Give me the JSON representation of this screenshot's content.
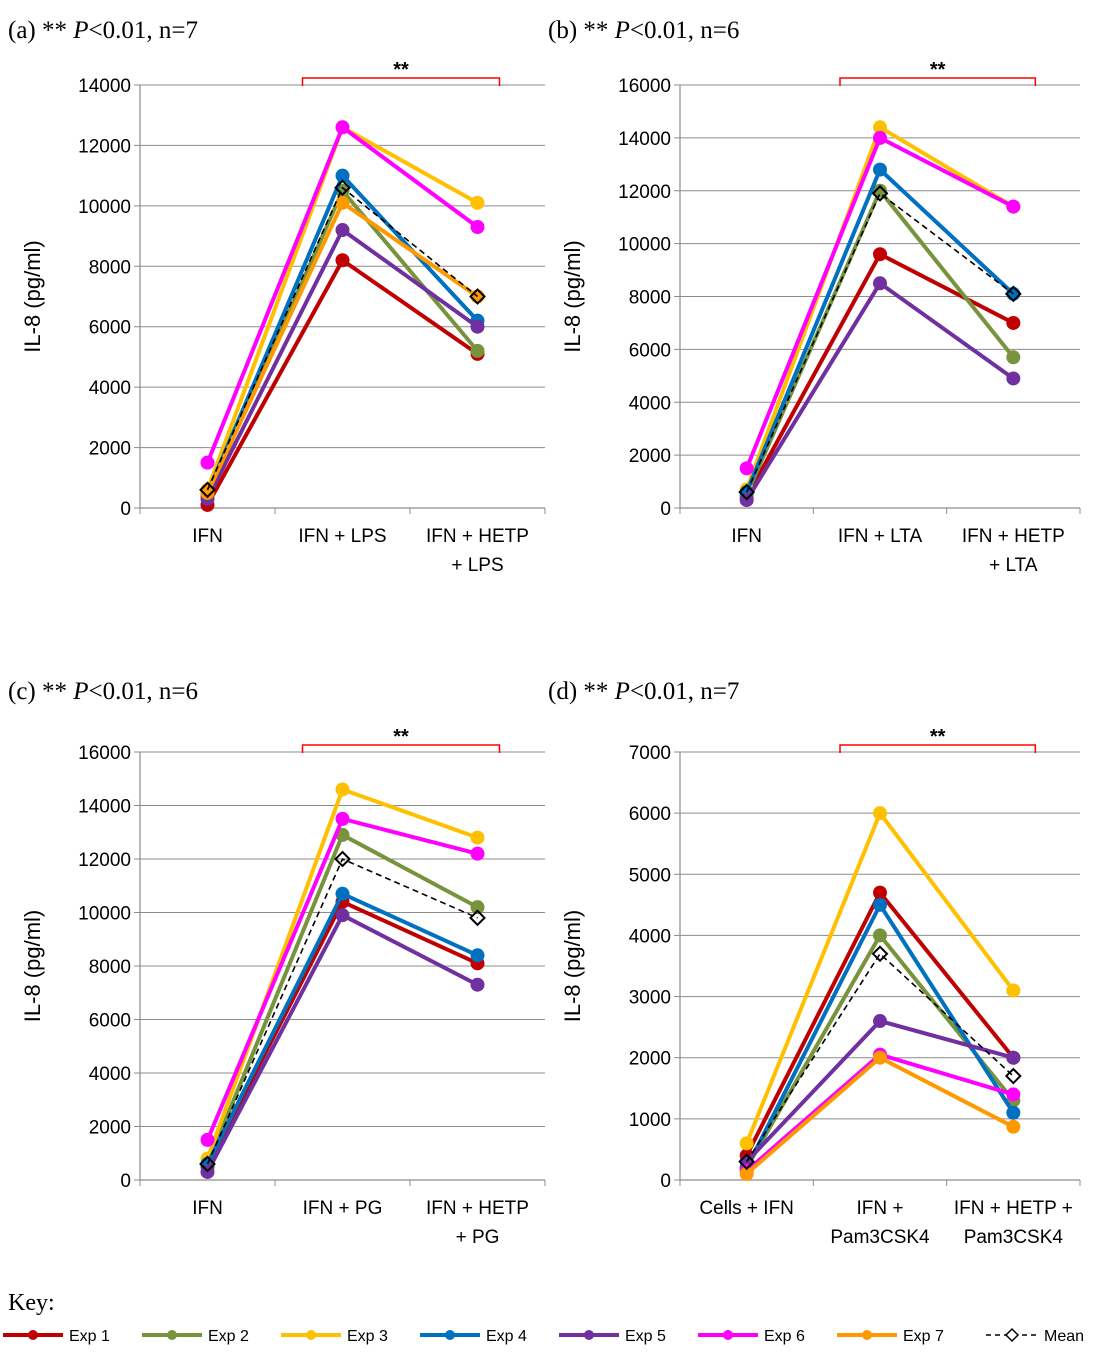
{
  "colors": {
    "Exp 1": "#c00000",
    "Exp 2": "#77933c",
    "Exp 3": "#ffc000",
    "Exp 4": "#0070c0",
    "Exp 5": "#7030a0",
    "Exp 6": "#ff00ff",
    "Exp 7": "#ff9900",
    "Mean": "#000000",
    "bracket": "#ff0000"
  },
  "key": {
    "title": "Key:",
    "items": [
      "Exp 1",
      "Exp 2",
      "Exp 3",
      "Exp 4",
      "Exp 5",
      "Exp 6",
      "Exp 7",
      "Mean"
    ]
  },
  "chart_data": [
    {
      "type": "line",
      "panel_label": "(a) ** ",
      "p_text": "P",
      "stat_text": "<0.01, n=7",
      "ylabel": "IL-8  (pg/ml)",
      "ylim": [
        0,
        14000
      ],
      "yticks": [
        0,
        2000,
        4000,
        6000,
        8000,
        10000,
        12000,
        14000
      ],
      "categories": [
        [
          "IFN"
        ],
        [
          "IFN + LPS"
        ],
        [
          "IFN + HETP",
          "+ LPS"
        ]
      ],
      "significance": "**",
      "series": [
        {
          "name": "Exp 1",
          "values": [
            100,
            8200,
            5100
          ]
        },
        {
          "name": "Exp 2",
          "values": [
            400,
            10500,
            5200
          ]
        },
        {
          "name": "Exp 3",
          "values": [
            600,
            12600,
            10100
          ]
        },
        {
          "name": "Exp 4",
          "values": [
            500,
            11000,
            6200
          ]
        },
        {
          "name": "Exp 5",
          "values": [
            300,
            9200,
            6000
          ]
        },
        {
          "name": "Exp 6",
          "values": [
            1500,
            12600,
            9300
          ]
        },
        {
          "name": "Exp 7",
          "values": [
            500,
            10100,
            7000
          ]
        },
        {
          "name": "Mean",
          "values": [
            600,
            10600,
            7000
          ]
        }
      ]
    },
    {
      "type": "line",
      "panel_label": "(b) ** ",
      "p_text": "P",
      "stat_text": "<0.01, n=6",
      "ylabel": "IL-8  (pg/ml)",
      "ylim": [
        0,
        16000
      ],
      "yticks": [
        0,
        2000,
        4000,
        6000,
        8000,
        10000,
        12000,
        14000,
        16000
      ],
      "categories": [
        [
          "IFN"
        ],
        [
          "IFN + LTA"
        ],
        [
          "IFN + HETP",
          "+ LTA"
        ]
      ],
      "significance": "**",
      "series": [
        {
          "name": "Exp 1",
          "values": [
            400,
            9600,
            7000
          ]
        },
        {
          "name": "Exp 2",
          "values": [
            500,
            12000,
            5700
          ]
        },
        {
          "name": "Exp 3",
          "values": [
            700,
            14400,
            11400
          ]
        },
        {
          "name": "Exp 4",
          "values": [
            600,
            12800,
            8100
          ]
        },
        {
          "name": "Exp 5",
          "values": [
            300,
            8500,
            4900
          ]
        },
        {
          "name": "Exp 6",
          "values": [
            1500,
            14000,
            11400
          ]
        },
        {
          "name": "Mean",
          "values": [
            600,
            11900,
            8100
          ]
        }
      ]
    },
    {
      "type": "line",
      "panel_label": "(c) ** ",
      "p_text": "P",
      "stat_text": "<0.01, n=6",
      "ylabel": "IL-8  (pg/ml)",
      "ylim": [
        0,
        16000
      ],
      "yticks": [
        0,
        2000,
        4000,
        6000,
        8000,
        10000,
        12000,
        14000,
        16000
      ],
      "categories": [
        [
          "IFN"
        ],
        [
          "IFN + PG"
        ],
        [
          "IFN + HETP",
          "+ PG"
        ]
      ],
      "significance": "**",
      "series": [
        {
          "name": "Exp 1",
          "values": [
            500,
            10400,
            8100
          ]
        },
        {
          "name": "Exp 2",
          "values": [
            600,
            12900,
            10200
          ]
        },
        {
          "name": "Exp 3",
          "values": [
            800,
            14600,
            12800
          ]
        },
        {
          "name": "Exp 4",
          "values": [
            600,
            10700,
            8400
          ]
        },
        {
          "name": "Exp 5",
          "values": [
            300,
            9900,
            7300
          ]
        },
        {
          "name": "Exp 6",
          "values": [
            1500,
            13500,
            12200
          ]
        },
        {
          "name": "Mean",
          "values": [
            600,
            12000,
            9800
          ]
        }
      ]
    },
    {
      "type": "line",
      "panel_label": "(d) ** ",
      "p_text": "P",
      "stat_text": "<0.01, n=7",
      "ylabel": "IL-8  (pg/ml)",
      "ylim": [
        0,
        7000
      ],
      "yticks": [
        0,
        1000,
        2000,
        3000,
        4000,
        5000,
        6000,
        7000
      ],
      "categories": [
        [
          "Cells + IFN"
        ],
        [
          "IFN +",
          "Pam3CSK4"
        ],
        [
          "IFN + HETP +",
          "Pam3CSK4"
        ]
      ],
      "significance": "**",
      "series": [
        {
          "name": "Exp 1",
          "values": [
            400,
            4700,
            2000
          ]
        },
        {
          "name": "Exp 2",
          "values": [
            200,
            4000,
            1300
          ]
        },
        {
          "name": "Exp 3",
          "values": [
            600,
            6000,
            3100
          ]
        },
        {
          "name": "Exp 4",
          "values": [
            200,
            4500,
            1100
          ]
        },
        {
          "name": "Exp 5",
          "values": [
            300,
            2600,
            2000
          ]
        },
        {
          "name": "Exp 6",
          "values": [
            150,
            2050,
            1400
          ]
        },
        {
          "name": "Exp 7",
          "values": [
            100,
            2000,
            870
          ]
        },
        {
          "name": "Mean",
          "values": [
            300,
            3700,
            1700
          ]
        }
      ]
    }
  ]
}
